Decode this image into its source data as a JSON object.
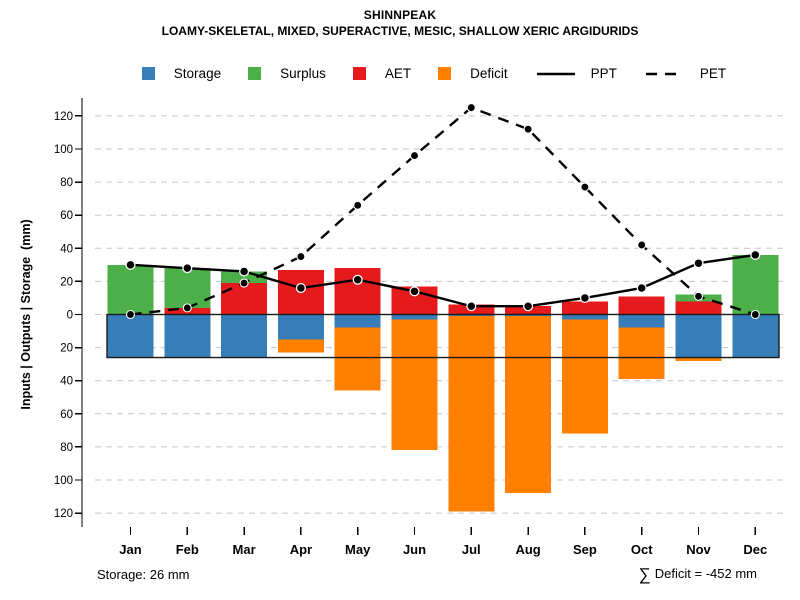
{
  "title": "SHINNPEAK",
  "subtitle": "LOAMY-SKELETAL, MIXED, SUPERACTIVE, MESIC, SHALLOW XERIC ARGIDURIDS",
  "legend": {
    "items": [
      {
        "label": "Storage",
        "color": "#377EB8",
        "type": "swatch"
      },
      {
        "label": "Surplus",
        "color": "#4DAF4A",
        "type": "swatch"
      },
      {
        "label": "AET",
        "color": "#E41A1C",
        "type": "swatch"
      },
      {
        "label": "Deficit",
        "color": "#FF7F00",
        "type": "swatch"
      },
      {
        "label": "PPT",
        "color": "#000000",
        "type": "line",
        "style": "solid"
      },
      {
        "label": "PET",
        "color": "#000000",
        "type": "line",
        "style": "dashed"
      }
    ]
  },
  "annotations": {
    "storage_text": "Storage: 26 mm",
    "deficit_sigma": "∑",
    "deficit_text": "Deficit = -452 mm"
  },
  "chart_data": {
    "type": "bar",
    "subtype": "monthly water balance (stacked bars above/below zero + PPT/PET lines)",
    "title": "SHINNPEAK",
    "subtitle": "LOAMY-SKELETAL, MIXED, SUPERACTIVE, MESIC, SHALLOW XERIC ARGIDURIDS",
    "categories": [
      "Jan",
      "Feb",
      "Mar",
      "Apr",
      "May",
      "Jun",
      "Jul",
      "Aug",
      "Sep",
      "Oct",
      "Nov",
      "Dec"
    ],
    "ylabel": "Inputs | Outputs | Storage  (mm)",
    "ylim": [
      -130,
      130
    ],
    "y_ticks_mm": [
      120,
      100,
      80,
      60,
      40,
      20,
      0,
      -20,
      -40,
      -60,
      -80,
      -100,
      -120
    ],
    "y_tick_labels": [
      "120",
      "100",
      "80",
      "60",
      "40",
      "20",
      "0",
      "20",
      "40",
      "60",
      "80",
      "100",
      "120"
    ],
    "grid": "horizontal dashed gray every 20 mm",
    "legend_position": "top center",
    "reference": {
      "zero_line_mm": 0,
      "storage_capacity_mm": 26,
      "deficit_total_mm": -452
    },
    "series": [
      {
        "name": "Storage",
        "type": "bar",
        "direction": "below-zero",
        "color": "#377EB8",
        "values": [
          26,
          26,
          26,
          15,
          8,
          3,
          1,
          1,
          3,
          8,
          26,
          26
        ]
      },
      {
        "name": "Surplus",
        "type": "bar",
        "direction": "above-zero-stacked-on-AET",
        "color": "#4DAF4A",
        "values": [
          30,
          24,
          7,
          0,
          0,
          0,
          0,
          0,
          0,
          0,
          4,
          36
        ]
      },
      {
        "name": "AET",
        "type": "bar",
        "direction": "above-zero",
        "color": "#E41A1C",
        "values": [
          0,
          4,
          19,
          27,
          28,
          17,
          6,
          5,
          8,
          11,
          8,
          0
        ]
      },
      {
        "name": "Deficit",
        "type": "bar",
        "direction": "below-zero-stacked-on-Storage",
        "color": "#FF7F00",
        "values": [
          0,
          0,
          0,
          8,
          38,
          79,
          118,
          107,
          69,
          31,
          2,
          0
        ]
      },
      {
        "name": "PPT",
        "type": "line",
        "style": "solid",
        "color": "#000000",
        "values": [
          30,
          28,
          26,
          16,
          21,
          14,
          5,
          5,
          10,
          16,
          31,
          36
        ]
      },
      {
        "name": "PET",
        "type": "line",
        "style": "dashed",
        "color": "#000000",
        "values": [
          0,
          4,
          19,
          35,
          66,
          96,
          125,
          112,
          77,
          42,
          11,
          0
        ]
      }
    ]
  }
}
